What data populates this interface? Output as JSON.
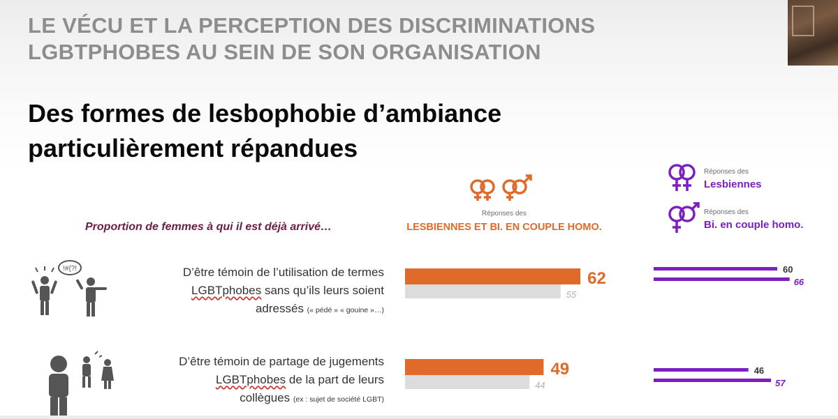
{
  "header": {
    "title_line1": "LE VÉCU ET LA PERCEPTION DES DISCRIMINATIONS",
    "title_line2": "LGBTPHOBES AU SEIN DE SON ORGANISATION"
  },
  "subtitle": {
    "line1": "Des formes de lesbophobie d’ambiance",
    "line2": "particulièrement répandues"
  },
  "question": "Proportion de femmes à qui il est déjà arrivé…",
  "legend": {
    "orange_small": "Réponses des",
    "orange_big": "LESBIENNES ET BI. EN COUPLE HOMO.",
    "purple1_small": "Réponses des",
    "purple1_big": "Lesbiennes",
    "purple2_small": "Réponses des",
    "purple2_big": "Bi. en couple homo."
  },
  "rows": [
    {
      "label_pre": "D’être témoin de l’utilisation de termes",
      "label_underlined": "LGBTphobes",
      "label_mid": " sans qu’ils leurs soient",
      "label_end": "adressés ",
      "label_small": "(« pédé » « gouine »…)",
      "icon": "people-insult-icon"
    },
    {
      "label_pre": "D’être témoin de partage de jugements",
      "label_underlined": "LGBTphobes",
      "label_mid": " de la part de leurs",
      "label_end": "collègues ",
      "label_small": "(ex : sujet de société LGBT)",
      "icon": "people-gossip-icon"
    }
  ],
  "colors": {
    "orange": "#E06A2A",
    "grey": "#DCDCDC",
    "purple": "#7A1FC0",
    "title_grey": "#8D8D8D",
    "question": "#6B1D47"
  },
  "chart_data": [
    {
      "type": "bar",
      "categories": [
        "D’être témoin de l’utilisation de termes LGBTphobes sans qu’ils leurs soient adressés",
        "D’être témoin de partage de jugements LGBTphobes de la part de leurs collègues"
      ],
      "series": [
        {
          "name": "LESBIENNES ET BI. EN COUPLE HOMO.",
          "values": [
            62,
            49
          ],
          "color": "#E06A2A"
        },
        {
          "name": "",
          "values": [
            55,
            44
          ],
          "color": "#DCDCDC"
        }
      ]
    },
    {
      "type": "bar",
      "categories": [
        "D’être témoin de l’utilisation de termes LGBTphobes sans qu’ils leurs soient adressés",
        "D’être témoin de partage de jugements LGBTphobes de la part de leurs collègues"
      ],
      "series": [
        {
          "name": "Lesbiennes",
          "values": [
            60,
            46
          ],
          "color": "#7A1FC0"
        },
        {
          "name": "Bi. en couple homo.",
          "values": [
            66,
            57
          ],
          "color": "#7A1FC0"
        }
      ]
    }
  ]
}
